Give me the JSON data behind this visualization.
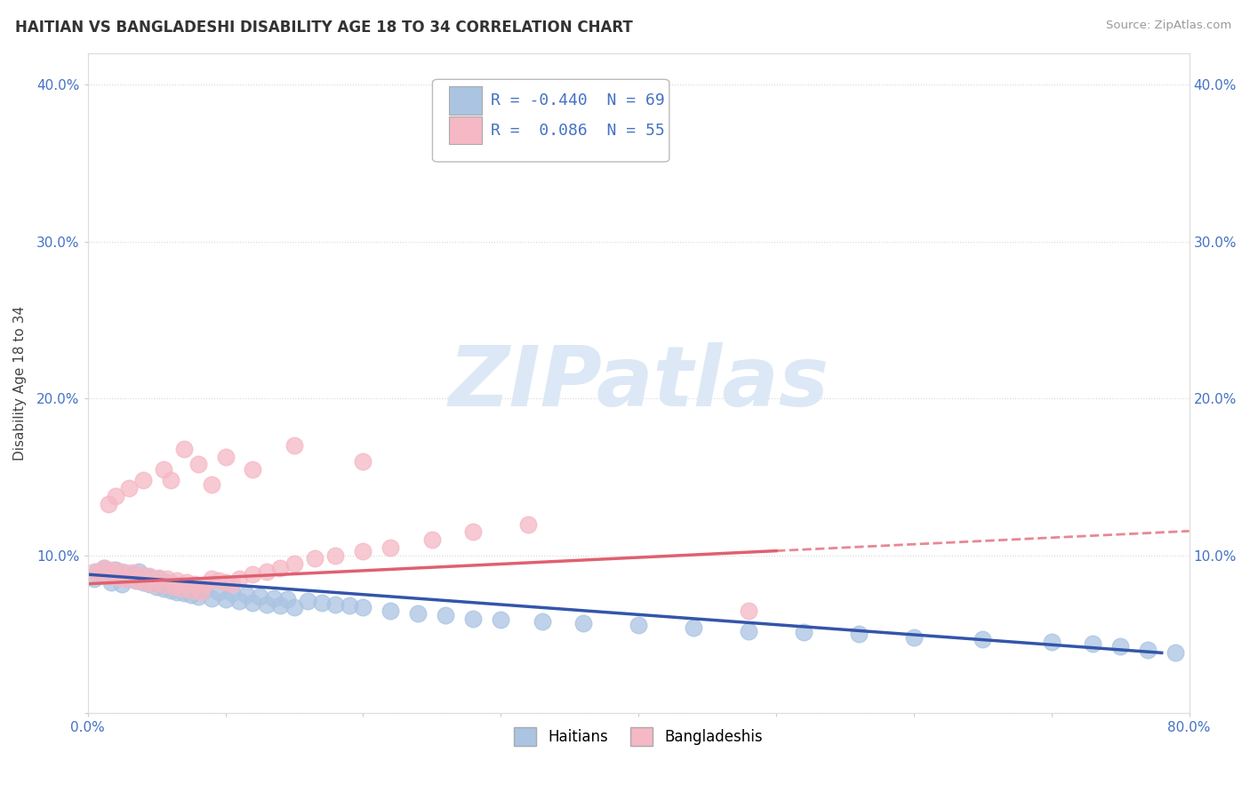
{
  "title": "HAITIAN VS BANGLADESHI DISABILITY AGE 18 TO 34 CORRELATION CHART",
  "source_text": "Source: ZipAtlas.com",
  "ylabel": "Disability Age 18 to 34",
  "xlim": [
    0.0,
    0.8
  ],
  "ylim": [
    0.0,
    0.42
  ],
  "xticks": [
    0.0,
    0.1,
    0.2,
    0.3,
    0.4,
    0.5,
    0.6,
    0.7,
    0.8
  ],
  "xticklabels": [
    "0.0%",
    "",
    "",
    "",
    "",
    "",
    "",
    "",
    "80.0%"
  ],
  "yticks": [
    0.0,
    0.1,
    0.2,
    0.3,
    0.4
  ],
  "yticklabels": [
    "",
    "10.0%",
    "20.0%",
    "30.0%",
    "40.0%"
  ],
  "haitian_color": "#aac4e2",
  "bangladeshi_color": "#f5b8c4",
  "haitian_line_color": "#3355aa",
  "bangladeshi_line_color": "#e06070",
  "watermark_text": "ZIPatlas",
  "watermark_color": "#dce8f5",
  "legend_R_haitian": "-0.440",
  "legend_N_haitian": "69",
  "legend_R_bangladeshi": "0.086",
  "legend_N_bangladeshi": "55",
  "haitian_scatter_x": [
    0.005,
    0.007,
    0.01,
    0.012,
    0.015,
    0.017,
    0.02,
    0.022,
    0.025,
    0.027,
    0.03,
    0.032,
    0.035,
    0.037,
    0.04,
    0.042,
    0.045,
    0.047,
    0.05,
    0.052,
    0.055,
    0.057,
    0.06,
    0.062,
    0.065,
    0.067,
    0.07,
    0.072,
    0.075,
    0.077,
    0.08,
    0.085,
    0.09,
    0.095,
    0.1,
    0.105,
    0.11,
    0.115,
    0.12,
    0.125,
    0.13,
    0.135,
    0.14,
    0.145,
    0.15,
    0.16,
    0.17,
    0.18,
    0.19,
    0.2,
    0.22,
    0.24,
    0.26,
    0.28,
    0.3,
    0.33,
    0.36,
    0.4,
    0.44,
    0.48,
    0.52,
    0.56,
    0.6,
    0.65,
    0.7,
    0.73,
    0.75,
    0.77,
    0.79
  ],
  "haitian_scatter_y": [
    0.085,
    0.09,
    0.088,
    0.092,
    0.087,
    0.083,
    0.091,
    0.086,
    0.082,
    0.089,
    0.085,
    0.088,
    0.084,
    0.09,
    0.083,
    0.087,
    0.082,
    0.086,
    0.08,
    0.085,
    0.079,
    0.083,
    0.078,
    0.082,
    0.077,
    0.081,
    0.076,
    0.08,
    0.075,
    0.079,
    0.074,
    0.078,
    0.073,
    0.077,
    0.072,
    0.076,
    0.071,
    0.075,
    0.07,
    0.074,
    0.069,
    0.073,
    0.068,
    0.072,
    0.067,
    0.071,
    0.07,
    0.069,
    0.068,
    0.067,
    0.065,
    0.063,
    0.062,
    0.06,
    0.059,
    0.058,
    0.057,
    0.056,
    0.054,
    0.052,
    0.051,
    0.05,
    0.048,
    0.047,
    0.045,
    0.044,
    0.042,
    0.04,
    0.038
  ],
  "bangladeshi_scatter_x": [
    0.005,
    0.008,
    0.012,
    0.015,
    0.018,
    0.022,
    0.025,
    0.028,
    0.032,
    0.035,
    0.038,
    0.042,
    0.045,
    0.048,
    0.052,
    0.055,
    0.058,
    0.062,
    0.065,
    0.068,
    0.072,
    0.075,
    0.078,
    0.082,
    0.085,
    0.09,
    0.095,
    0.1,
    0.105,
    0.11,
    0.12,
    0.13,
    0.14,
    0.15,
    0.165,
    0.18,
    0.2,
    0.22,
    0.25,
    0.28,
    0.32,
    0.2,
    0.15,
    0.12,
    0.09,
    0.07,
    0.055,
    0.04,
    0.03,
    0.02,
    0.015,
    0.06,
    0.08,
    0.1,
    0.48
  ],
  "bangladeshi_scatter_y": [
    0.09,
    0.088,
    0.092,
    0.087,
    0.091,
    0.086,
    0.09,
    0.085,
    0.089,
    0.084,
    0.088,
    0.083,
    0.087,
    0.082,
    0.086,
    0.081,
    0.085,
    0.08,
    0.084,
    0.079,
    0.083,
    0.078,
    0.082,
    0.077,
    0.081,
    0.085,
    0.084,
    0.083,
    0.082,
    0.085,
    0.088,
    0.09,
    0.092,
    0.095,
    0.098,
    0.1,
    0.103,
    0.105,
    0.11,
    0.115,
    0.12,
    0.16,
    0.17,
    0.155,
    0.145,
    0.168,
    0.155,
    0.148,
    0.143,
    0.138,
    0.133,
    0.148,
    0.158,
    0.163,
    0.065
  ],
  "background_color": "#ffffff",
  "grid_color": "#cccccc",
  "title_fontsize": 12,
  "axis_label_fontsize": 11,
  "tick_fontsize": 11,
  "legend_fontsize": 13
}
